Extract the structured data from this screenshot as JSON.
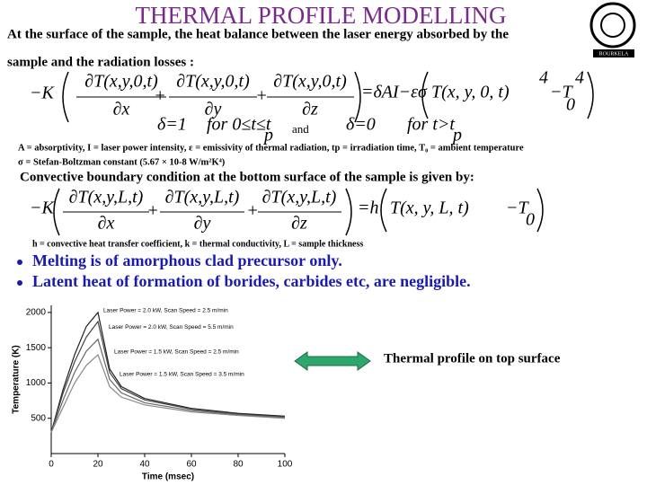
{
  "header": {
    "title": "THERMAL PROFILE MODELLING",
    "logo_text": "ROURKELA"
  },
  "intro": [
    "At the surface of the sample, the heat balance between the laser energy absorbed by the",
    "sample and the radiation losses :"
  ],
  "equation1": {
    "lhs": "−K",
    "numerators": [
      "∂T(x,y,0,t)",
      "∂T(x,y,0,t)",
      "∂T(x,y,0,t)"
    ],
    "denominators": [
      "∂x",
      "∂y",
      "∂z"
    ],
    "operators": [
      "+",
      "+"
    ],
    "rhs": [
      "=δAI−εσ",
      "T(x, y, 0, t)",
      "4",
      "−T",
      "0",
      "4"
    ],
    "conditions": [
      "δ=1",
      "for 0≤t≤t",
      "p",
      "and",
      "δ=0",
      "for t>t",
      "p"
    ]
  },
  "notes": [
    "A = absorptivity, I = laser power intensity, ε = emissivity of thermal radiation, tp = irradiation time, T₀ = ambient temperature",
    "σ = Stefan-Boltzman constant (5.67 × 10-8 W/m²K⁴)"
  ],
  "heading2": "Convective boundary condition at the bottom surface of the sample is given by:",
  "equation2": {
    "lhs": "−K",
    "numerators": [
      "∂T(x,y,L,t)",
      "∂T(x,y,L,t)",
      "∂T(x,y,L,t)"
    ],
    "denominators": [
      "∂x",
      "∂y",
      "∂z"
    ],
    "operators": [
      "+",
      "+"
    ],
    "rhs": [
      "=h",
      "T(x, y, L, t)",
      "−T",
      "0"
    ]
  },
  "note2": "h = convective heat transfer coefficient, k = thermal conductivity, L = sample thickness",
  "bullets": [
    "Melting is of amorphous clad precursor only.",
    "Latent heat of formation of borides, carbides etc, are negligible."
  ],
  "chart_data": {
    "type": "line",
    "x_label": "Time (msec)",
    "y_label": "Temperature (K)",
    "x": [
      0,
      5,
      10,
      15,
      20,
      25,
      30,
      40,
      60,
      80,
      100
    ],
    "series": [
      {
        "name": "Laser Power = 2.0 kW, Scan Speed = 2.5 m/min",
        "color": "#222222",
        "values": [
          300,
          900,
          1400,
          1800,
          2000,
          1200,
          950,
          780,
          640,
          570,
          530
        ]
      },
      {
        "name": "Laser Power = 2.0 kW, Scan Speed = 5.5 m/min",
        "color": "#444444",
        "values": [
          300,
          850,
          1300,
          1650,
          1870,
          1150,
          920,
          760,
          630,
          560,
          520
        ]
      },
      {
        "name": "Laser Power = 1.5 kW, Scan Speed = 2.5 m/min",
        "color": "#666666",
        "values": [
          300,
          750,
          1150,
          1450,
          1620,
          1050,
          860,
          720,
          610,
          550,
          510
        ]
      },
      {
        "name": "Laser Power = 1.5 kW, Scan Speed = 3.5 m/min",
        "color": "#888888",
        "values": [
          300,
          650,
          1000,
          1250,
          1400,
          950,
          800,
          690,
          590,
          540,
          500
        ]
      }
    ],
    "xlim": [
      0,
      100
    ],
    "ylim": [
      0,
      2100
    ],
    "xticks": [
      0,
      20,
      40,
      60,
      80,
      100
    ],
    "yticks": [
      500,
      1000,
      1500,
      2000
    ]
  },
  "caption": "Thermal profile on top surface"
}
